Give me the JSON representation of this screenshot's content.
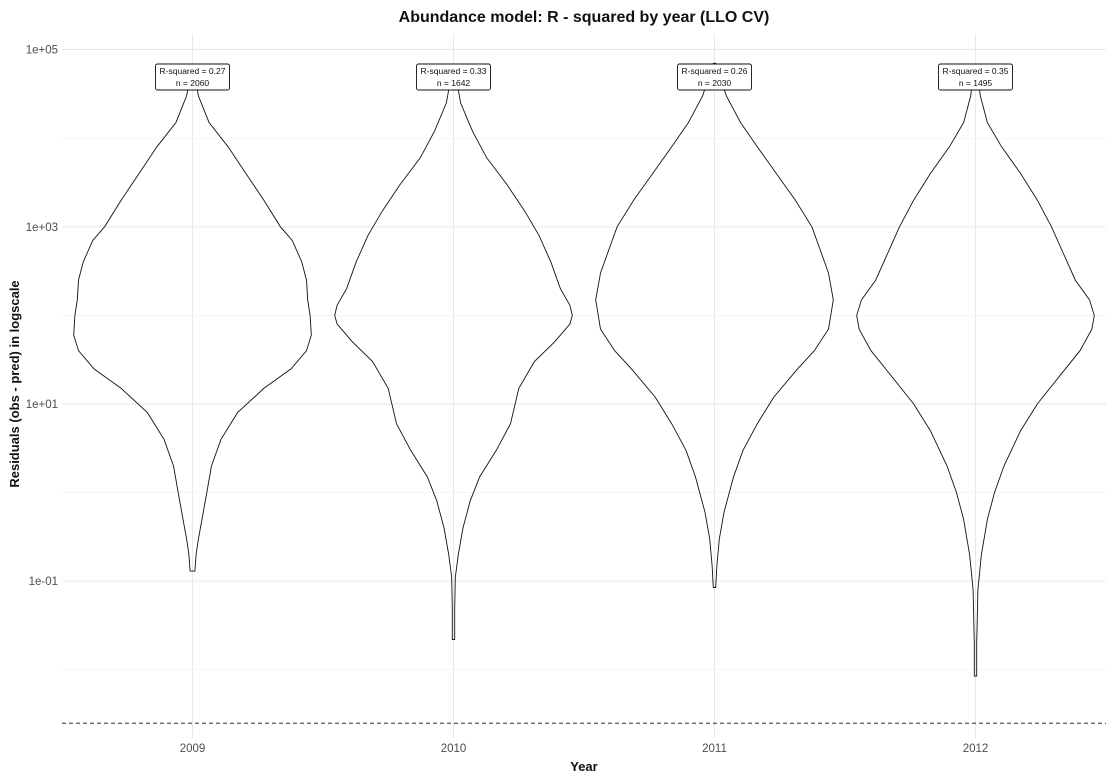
{
  "chart_data": {
    "type": "violin",
    "title": "Abundance model: R - squared by year (LLO CV)",
    "xlabel": "Year",
    "ylabel": "Residuals (obs - pred) in logscale",
    "y_scale": "log10",
    "ylim": [
      0.0017,
      150000
    ],
    "y_ticks": [
      {
        "value": 0.1,
        "label": "1e-01"
      },
      {
        "value": 10,
        "label": "1e+01"
      },
      {
        "value": 1000,
        "label": "1e+03"
      },
      {
        "value": 100000,
        "label": "1e+05"
      }
    ],
    "y_minor_ticks": [
      0.01,
      1,
      100,
      10000
    ],
    "reference_line": {
      "y": 0.0025,
      "style": "dashed"
    },
    "grid": true,
    "legend": "none",
    "categories": [
      "2009",
      "2010",
      "2011",
      "2012"
    ],
    "violins": [
      {
        "year": "2009",
        "r2_label": "R-squared = 0.27",
        "n_label": "n = 2060",
        "min": 0.13,
        "max": 50000,
        "profile": [
          [
            0.13,
            0.02
          ],
          [
            0.2,
            0.03
          ],
          [
            0.3,
            0.05
          ],
          [
            0.5,
            0.08
          ],
          [
            1,
            0.12
          ],
          [
            2,
            0.16
          ],
          [
            4,
            0.24
          ],
          [
            8,
            0.38
          ],
          [
            15,
            0.6
          ],
          [
            25,
            0.83
          ],
          [
            40,
            0.96
          ],
          [
            60,
            1.0
          ],
          [
            100,
            0.99
          ],
          [
            150,
            0.97
          ],
          [
            250,
            0.96
          ],
          [
            400,
            0.92
          ],
          [
            700,
            0.84
          ],
          [
            1000,
            0.74
          ],
          [
            2000,
            0.6
          ],
          [
            4000,
            0.45
          ],
          [
            8000,
            0.3
          ],
          [
            15000,
            0.14
          ],
          [
            30000,
            0.05
          ],
          [
            50000,
            0.02
          ]
        ]
      },
      {
        "year": "2010",
        "r2_label": "R-squared = 0.33",
        "n_label": "n = 1642",
        "min": 0.022,
        "max": 60000,
        "profile": [
          [
            0.022,
            0.01
          ],
          [
            0.05,
            0.01
          ],
          [
            0.11,
            0.015
          ],
          [
            0.2,
            0.04
          ],
          [
            0.4,
            0.08
          ],
          [
            0.8,
            0.14
          ],
          [
            1.5,
            0.22
          ],
          [
            3,
            0.36
          ],
          [
            6,
            0.48
          ],
          [
            15,
            0.55
          ],
          [
            30,
            0.68
          ],
          [
            50,
            0.85
          ],
          [
            80,
            0.98
          ],
          [
            100,
            1.0
          ],
          [
            130,
            0.98
          ],
          [
            200,
            0.9
          ],
          [
            400,
            0.82
          ],
          [
            800,
            0.72
          ],
          [
            1500,
            0.6
          ],
          [
            3000,
            0.45
          ],
          [
            6000,
            0.28
          ],
          [
            12000,
            0.16
          ],
          [
            25000,
            0.06
          ],
          [
            60000,
            0.01
          ]
        ]
      },
      {
        "year": "2011",
        "r2_label": "R-squared = 0.26",
        "n_label": "n = 2030",
        "min": 0.085,
        "max": 70000,
        "profile": [
          [
            0.085,
            0.01
          ],
          [
            0.15,
            0.02
          ],
          [
            0.3,
            0.04
          ],
          [
            0.6,
            0.08
          ],
          [
            1.5,
            0.16
          ],
          [
            3,
            0.24
          ],
          [
            6,
            0.36
          ],
          [
            12,
            0.5
          ],
          [
            25,
            0.7
          ],
          [
            40,
            0.84
          ],
          [
            70,
            0.96
          ],
          [
            150,
            1.0
          ],
          [
            300,
            0.96
          ],
          [
            600,
            0.88
          ],
          [
            1000,
            0.82
          ],
          [
            2000,
            0.68
          ],
          [
            4000,
            0.52
          ],
          [
            8000,
            0.36
          ],
          [
            15000,
            0.22
          ],
          [
            30000,
            0.1
          ],
          [
            70000,
            0.01
          ]
        ]
      },
      {
        "year": "2012",
        "r2_label": "R-squared = 0.35",
        "n_label": "n = 1495",
        "min": 0.0085,
        "max": 50000,
        "profile": [
          [
            0.0085,
            0.01
          ],
          [
            0.02,
            0.01
          ],
          [
            0.08,
            0.02
          ],
          [
            0.2,
            0.05
          ],
          [
            0.5,
            0.1
          ],
          [
            1,
            0.16
          ],
          [
            2,
            0.24
          ],
          [
            5,
            0.38
          ],
          [
            10,
            0.52
          ],
          [
            20,
            0.7
          ],
          [
            40,
            0.88
          ],
          [
            70,
            0.98
          ],
          [
            100,
            1.0
          ],
          [
            150,
            0.96
          ],
          [
            250,
            0.84
          ],
          [
            500,
            0.74
          ],
          [
            1000,
            0.64
          ],
          [
            2000,
            0.52
          ],
          [
            4000,
            0.38
          ],
          [
            8000,
            0.22
          ],
          [
            15000,
            0.1
          ],
          [
            30000,
            0.04
          ],
          [
            50000,
            0.02
          ]
        ]
      }
    ]
  }
}
